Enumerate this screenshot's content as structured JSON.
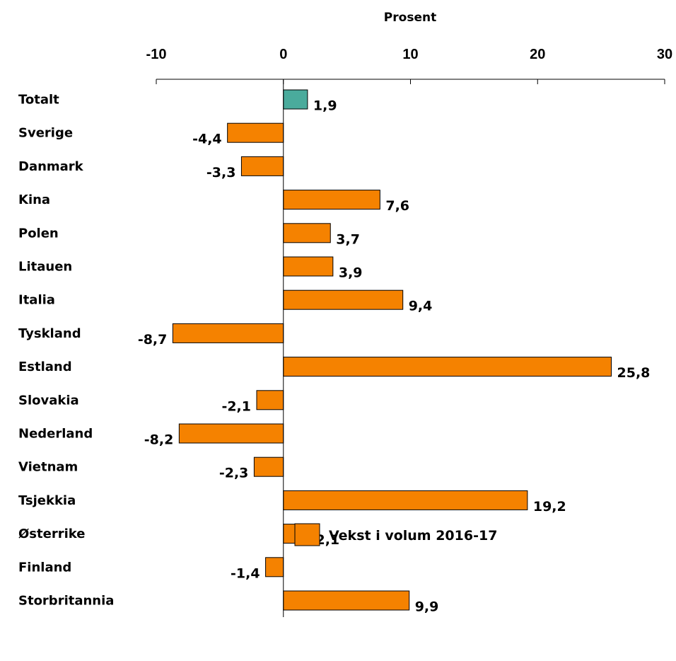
{
  "chart_data": {
    "type": "bar",
    "orientation": "horizontal",
    "xlabel": "Prosent",
    "xlim": [
      -10,
      30
    ],
    "xticks": [
      -10,
      0,
      10,
      20,
      30
    ],
    "tick_labels": [
      "-10",
      "0",
      "10",
      "20",
      "30"
    ],
    "categories": [
      "Totalt",
      "Sverige",
      "Danmark",
      "Kina",
      "Polen",
      "Litauen",
      "Italia",
      "Tyskland",
      "Estland",
      "Slovakia",
      "Nederland",
      "Vietnam",
      "Tsjekkia",
      "Østerrike",
      "Finland",
      "Storbritannia"
    ],
    "values": [
      1.9,
      -4.4,
      -3.3,
      7.6,
      3.7,
      3.9,
      9.4,
      -8.7,
      25.8,
      -2.1,
      -8.2,
      -2.3,
      19.2,
      2.1,
      -1.4,
      9.9
    ],
    "value_labels": [
      "1,9",
      "-4,4",
      "-3,3",
      "7,6",
      "3,7",
      "3,9",
      "9,4",
      "-8,7",
      "25,8",
      "-2,1",
      "-8,2",
      "-2,3",
      "19,2",
      "2,1",
      "-1,4",
      "9,9"
    ],
    "series": [
      {
        "name": "Vekst i volum 2016-17",
        "color": "#f58200"
      }
    ],
    "highlight": {
      "category": "Totalt",
      "color": "#4aab9c"
    },
    "grid": false,
    "legend_position": "bottom-center"
  }
}
